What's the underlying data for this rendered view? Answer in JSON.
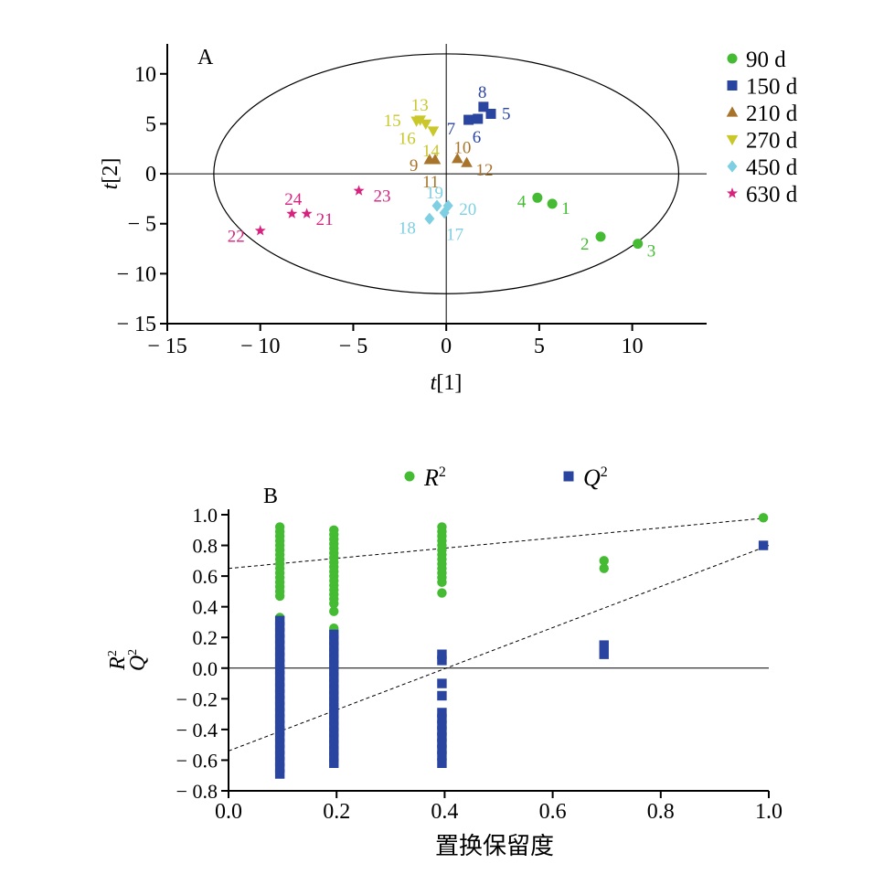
{
  "chart_data": [
    {
      "type": "scatter",
      "panel_label": "A",
      "xlabel": "t[1]",
      "ylabel": "t[2]",
      "xlim": [
        -15,
        14
      ],
      "ylim": [
        -15,
        13
      ],
      "xticks": [
        -15,
        -10,
        -5,
        0,
        5,
        10
      ],
      "yticks": [
        -15,
        -10,
        -5,
        0,
        5,
        10
      ],
      "ellipse": {
        "cx": 0,
        "cy": 0,
        "rx": 12.5,
        "ry": 12
      },
      "series": [
        {
          "name": "90 d",
          "marker": "circle",
          "color": "#44bb33",
          "points": [
            {
              "label": "1",
              "x": 5.7,
              "y": -3.0
            },
            {
              "label": "2",
              "x": 8.3,
              "y": -6.3
            },
            {
              "label": "3",
              "x": 10.3,
              "y": -7.0
            },
            {
              "label": "4",
              "x": 4.9,
              "y": -2.4
            }
          ]
        },
        {
          "name": "150 d",
          "marker": "square",
          "color": "#2a45a0",
          "points": [
            {
              "label": "5",
              "x": 2.4,
              "y": 6.0
            },
            {
              "label": "6",
              "x": 1.7,
              "y": 5.5
            },
            {
              "label": "7",
              "x": 1.2,
              "y": 5.4
            },
            {
              "label": "8",
              "x": 2.0,
              "y": 6.7
            }
          ]
        },
        {
          "name": "210 d",
          "marker": "triangle-up",
          "color": "#a8742b",
          "points": [
            {
              "label": "9",
              "x": -0.9,
              "y": 1.4
            },
            {
              "label": "10",
              "x": 0.6,
              "y": 1.5
            },
            {
              "label": "11",
              "x": -0.6,
              "y": 1.4
            },
            {
              "label": "12",
              "x": 1.1,
              "y": 1.1
            }
          ]
        },
        {
          "name": "270 d",
          "marker": "triangle-down",
          "color": "#c9c72a",
          "points": [
            {
              "label": "13",
              "x": -1.4,
              "y": 5.4
            },
            {
              "label": "14",
              "x": -0.7,
              "y": 4.3
            },
            {
              "label": "15",
              "x": -1.6,
              "y": 5.3
            },
            {
              "label": "16",
              "x": -1.1,
              "y": 5.0
            }
          ]
        },
        {
          "name": "450 d",
          "marker": "diamond",
          "color": "#7fcfe2",
          "points": [
            {
              "label": "17",
              "x": -0.1,
              "y": -3.9
            },
            {
              "label": "18",
              "x": -0.9,
              "y": -4.5
            },
            {
              "label": "19",
              "x": -0.5,
              "y": -3.2
            },
            {
              "label": "20",
              "x": 0.1,
              "y": -3.2
            }
          ]
        },
        {
          "name": "630 d",
          "marker": "star",
          "color": "#d6237f",
          "points": [
            {
              "label": "21",
              "x": -7.5,
              "y": -4.0
            },
            {
              "label": "22",
              "x": -10.0,
              "y": -5.7
            },
            {
              "label": "23",
              "x": -4.7,
              "y": -1.7
            },
            {
              "label": "24",
              "x": -8.3,
              "y": -4.0
            }
          ]
        }
      ]
    },
    {
      "type": "scatter",
      "panel_label": "B",
      "xlabel": "置换保留度",
      "ylabel_lines": [
        "R",
        "Q"
      ],
      "ylabel_sup": "2",
      "xlim": [
        0.0,
        1.0
      ],
      "ylim": [
        -0.8,
        1.0
      ],
      "xticks": [
        0.0,
        0.2,
        0.4,
        0.6,
        0.8,
        1.0
      ],
      "yticks": [
        -0.8,
        -0.6,
        -0.4,
        -0.2,
        0.0,
        0.2,
        0.4,
        0.6,
        0.8,
        1.0
      ],
      "tick_decimals": 1,
      "legend": {
        "position": "top"
      },
      "series": [
        {
          "name": "R",
          "name_sup": "2",
          "marker": "circle",
          "color": "#44bb33",
          "points": [
            [
              0.095,
              0.92
            ],
            [
              0.095,
              0.89
            ],
            [
              0.095,
              0.86
            ],
            [
              0.095,
              0.83
            ],
            [
              0.095,
              0.8
            ],
            [
              0.095,
              0.77
            ],
            [
              0.095,
              0.74
            ],
            [
              0.095,
              0.71
            ],
            [
              0.095,
              0.68
            ],
            [
              0.095,
              0.65
            ],
            [
              0.095,
              0.62
            ],
            [
              0.095,
              0.59
            ],
            [
              0.095,
              0.56
            ],
            [
              0.095,
              0.53
            ],
            [
              0.095,
              0.5
            ],
            [
              0.095,
              0.47
            ],
            [
              0.095,
              0.33
            ],
            [
              0.195,
              0.9
            ],
            [
              0.195,
              0.87
            ],
            [
              0.195,
              0.84
            ],
            [
              0.195,
              0.81
            ],
            [
              0.195,
              0.78
            ],
            [
              0.195,
              0.75
            ],
            [
              0.195,
              0.72
            ],
            [
              0.195,
              0.69
            ],
            [
              0.195,
              0.66
            ],
            [
              0.195,
              0.63
            ],
            [
              0.195,
              0.6
            ],
            [
              0.195,
              0.57
            ],
            [
              0.195,
              0.54
            ],
            [
              0.195,
              0.51
            ],
            [
              0.195,
              0.48
            ],
            [
              0.195,
              0.45
            ],
            [
              0.195,
              0.42
            ],
            [
              0.195,
              0.37
            ],
            [
              0.195,
              0.26
            ],
            [
              0.395,
              0.92
            ],
            [
              0.395,
              0.89
            ],
            [
              0.395,
              0.86
            ],
            [
              0.395,
              0.83
            ],
            [
              0.395,
              0.8
            ],
            [
              0.395,
              0.77
            ],
            [
              0.395,
              0.74
            ],
            [
              0.395,
              0.71
            ],
            [
              0.395,
              0.68
            ],
            [
              0.395,
              0.65
            ],
            [
              0.395,
              0.62
            ],
            [
              0.395,
              0.59
            ],
            [
              0.395,
              0.56
            ],
            [
              0.395,
              0.49
            ],
            [
              0.695,
              0.7
            ],
            [
              0.695,
              0.65
            ],
            [
              0.99,
              0.98
            ]
          ]
        },
        {
          "name": "Q",
          "name_sup": "2",
          "marker": "square",
          "color": "#2a45a0",
          "points": [
            [
              0.095,
              0.31
            ],
            [
              0.095,
              0.27
            ],
            [
              0.095,
              0.23
            ],
            [
              0.095,
              0.19
            ],
            [
              0.095,
              0.15
            ],
            [
              0.095,
              0.11
            ],
            [
              0.095,
              0.07
            ],
            [
              0.095,
              0.03
            ],
            [
              0.095,
              -0.01
            ],
            [
              0.095,
              -0.05
            ],
            [
              0.095,
              -0.09
            ],
            [
              0.095,
              -0.13
            ],
            [
              0.095,
              -0.17
            ],
            [
              0.095,
              -0.21
            ],
            [
              0.095,
              -0.25
            ],
            [
              0.095,
              -0.29
            ],
            [
              0.095,
              -0.33
            ],
            [
              0.095,
              -0.37
            ],
            [
              0.095,
              -0.41
            ],
            [
              0.095,
              -0.45
            ],
            [
              0.095,
              -0.49
            ],
            [
              0.095,
              -0.53
            ],
            [
              0.095,
              -0.57
            ],
            [
              0.095,
              -0.61
            ],
            [
              0.095,
              -0.65
            ],
            [
              0.095,
              -0.69
            ],
            [
              0.195,
              0.22
            ],
            [
              0.195,
              0.18
            ],
            [
              0.195,
              0.14
            ],
            [
              0.195,
              0.1
            ],
            [
              0.195,
              0.06
            ],
            [
              0.195,
              0.02
            ],
            [
              0.195,
              -0.02
            ],
            [
              0.195,
              -0.06
            ],
            [
              0.195,
              -0.1
            ],
            [
              0.195,
              -0.14
            ],
            [
              0.195,
              -0.18
            ],
            [
              0.195,
              -0.22
            ],
            [
              0.195,
              -0.26
            ],
            [
              0.195,
              -0.3
            ],
            [
              0.195,
              -0.34
            ],
            [
              0.195,
              -0.38
            ],
            [
              0.195,
              -0.42
            ],
            [
              0.195,
              -0.46
            ],
            [
              0.195,
              -0.5
            ],
            [
              0.195,
              -0.54
            ],
            [
              0.195,
              -0.58
            ],
            [
              0.195,
              -0.62
            ],
            [
              0.395,
              0.09
            ],
            [
              0.395,
              0.05
            ],
            [
              0.395,
              -0.1
            ],
            [
              0.395,
              -0.18
            ],
            [
              0.395,
              -0.29
            ],
            [
              0.395,
              -0.33
            ],
            [
              0.395,
              -0.37
            ],
            [
              0.395,
              -0.41
            ],
            [
              0.395,
              -0.45
            ],
            [
              0.395,
              -0.49
            ],
            [
              0.395,
              -0.53
            ],
            [
              0.395,
              -0.57
            ],
            [
              0.395,
              -0.62
            ],
            [
              0.695,
              0.15
            ],
            [
              0.695,
              0.09
            ],
            [
              0.99,
              0.8
            ]
          ]
        }
      ],
      "trend_lines": [
        {
          "series": "R2",
          "x": [
            0.0,
            1.0
          ],
          "y": [
            0.65,
            0.98
          ]
        },
        {
          "series": "Q2",
          "x": [
            0.0,
            1.0
          ],
          "y": [
            -0.54,
            0.8
          ]
        }
      ]
    }
  ]
}
